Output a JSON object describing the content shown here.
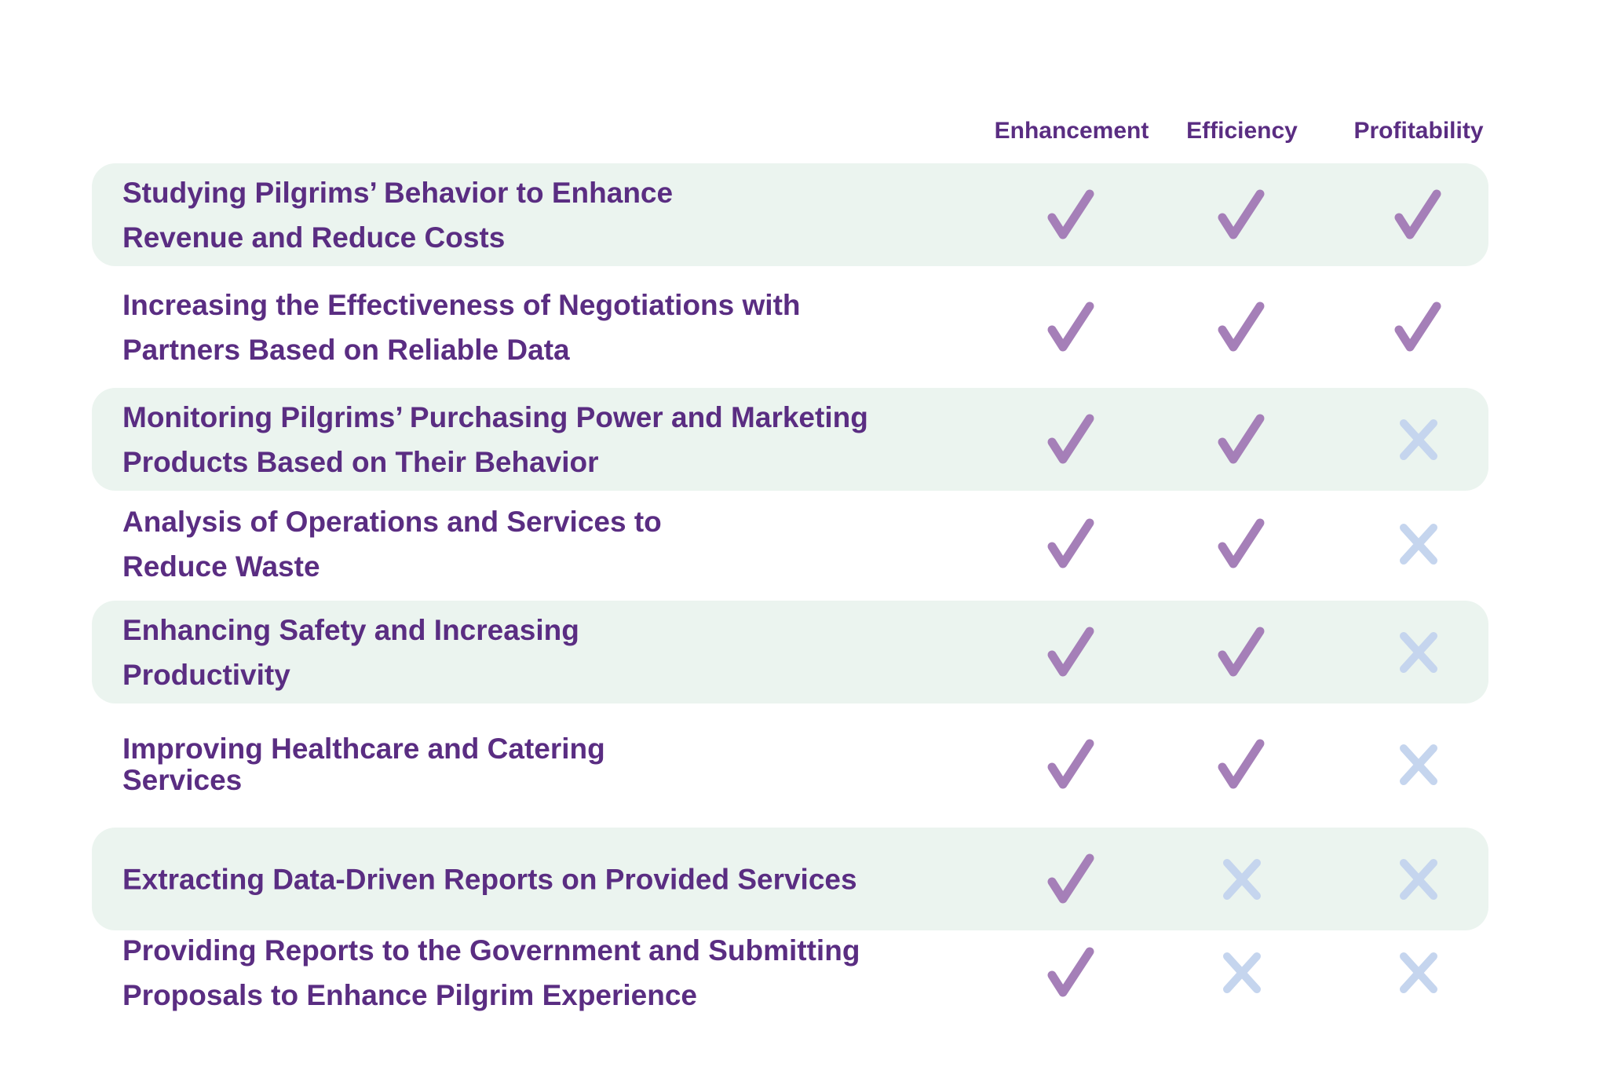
{
  "columns": [
    "Enhancement",
    "Efficiency",
    "Profitability"
  ],
  "colors": {
    "text": "#5a2d82",
    "check": "#a57fb8",
    "cross": "#c5d5ee",
    "band": "#ebf4ef"
  },
  "rows": [
    {
      "lines": [
        "Studying Pilgrims’ Behavior to Enhance",
        "Revenue and Reduce Costs"
      ],
      "values": [
        true,
        true,
        true
      ]
    },
    {
      "lines": [
        "Increasing the Effectiveness of Negotiations with",
        "Partners Based on Reliable Data"
      ],
      "values": [
        true,
        true,
        true
      ]
    },
    {
      "lines": [
        "Monitoring Pilgrims’ Purchasing Power and Marketing",
        "Products Based on Their Behavior"
      ],
      "values": [
        true,
        true,
        false
      ]
    },
    {
      "lines": [
        "Analysis of Operations and Services to",
        "Reduce Waste"
      ],
      "values": [
        true,
        true,
        false
      ]
    },
    {
      "lines": [
        "Enhancing Safety and Increasing",
        "Productivity"
      ],
      "values": [
        true,
        true,
        false
      ]
    },
    {
      "lines": [
        "Improving Healthcare and Catering",
        "Services"
      ],
      "values": [
        true,
        true,
        false
      ]
    },
    {
      "lines": [
        "Extracting Data-Driven Reports on Provided Services"
      ],
      "values": [
        true,
        false,
        false
      ]
    },
    {
      "lines": [
        "Providing Reports to the Government and Submitting",
        "Proposals to Enhance Pilgrim Experience"
      ],
      "values": [
        true,
        false,
        false
      ]
    }
  ]
}
